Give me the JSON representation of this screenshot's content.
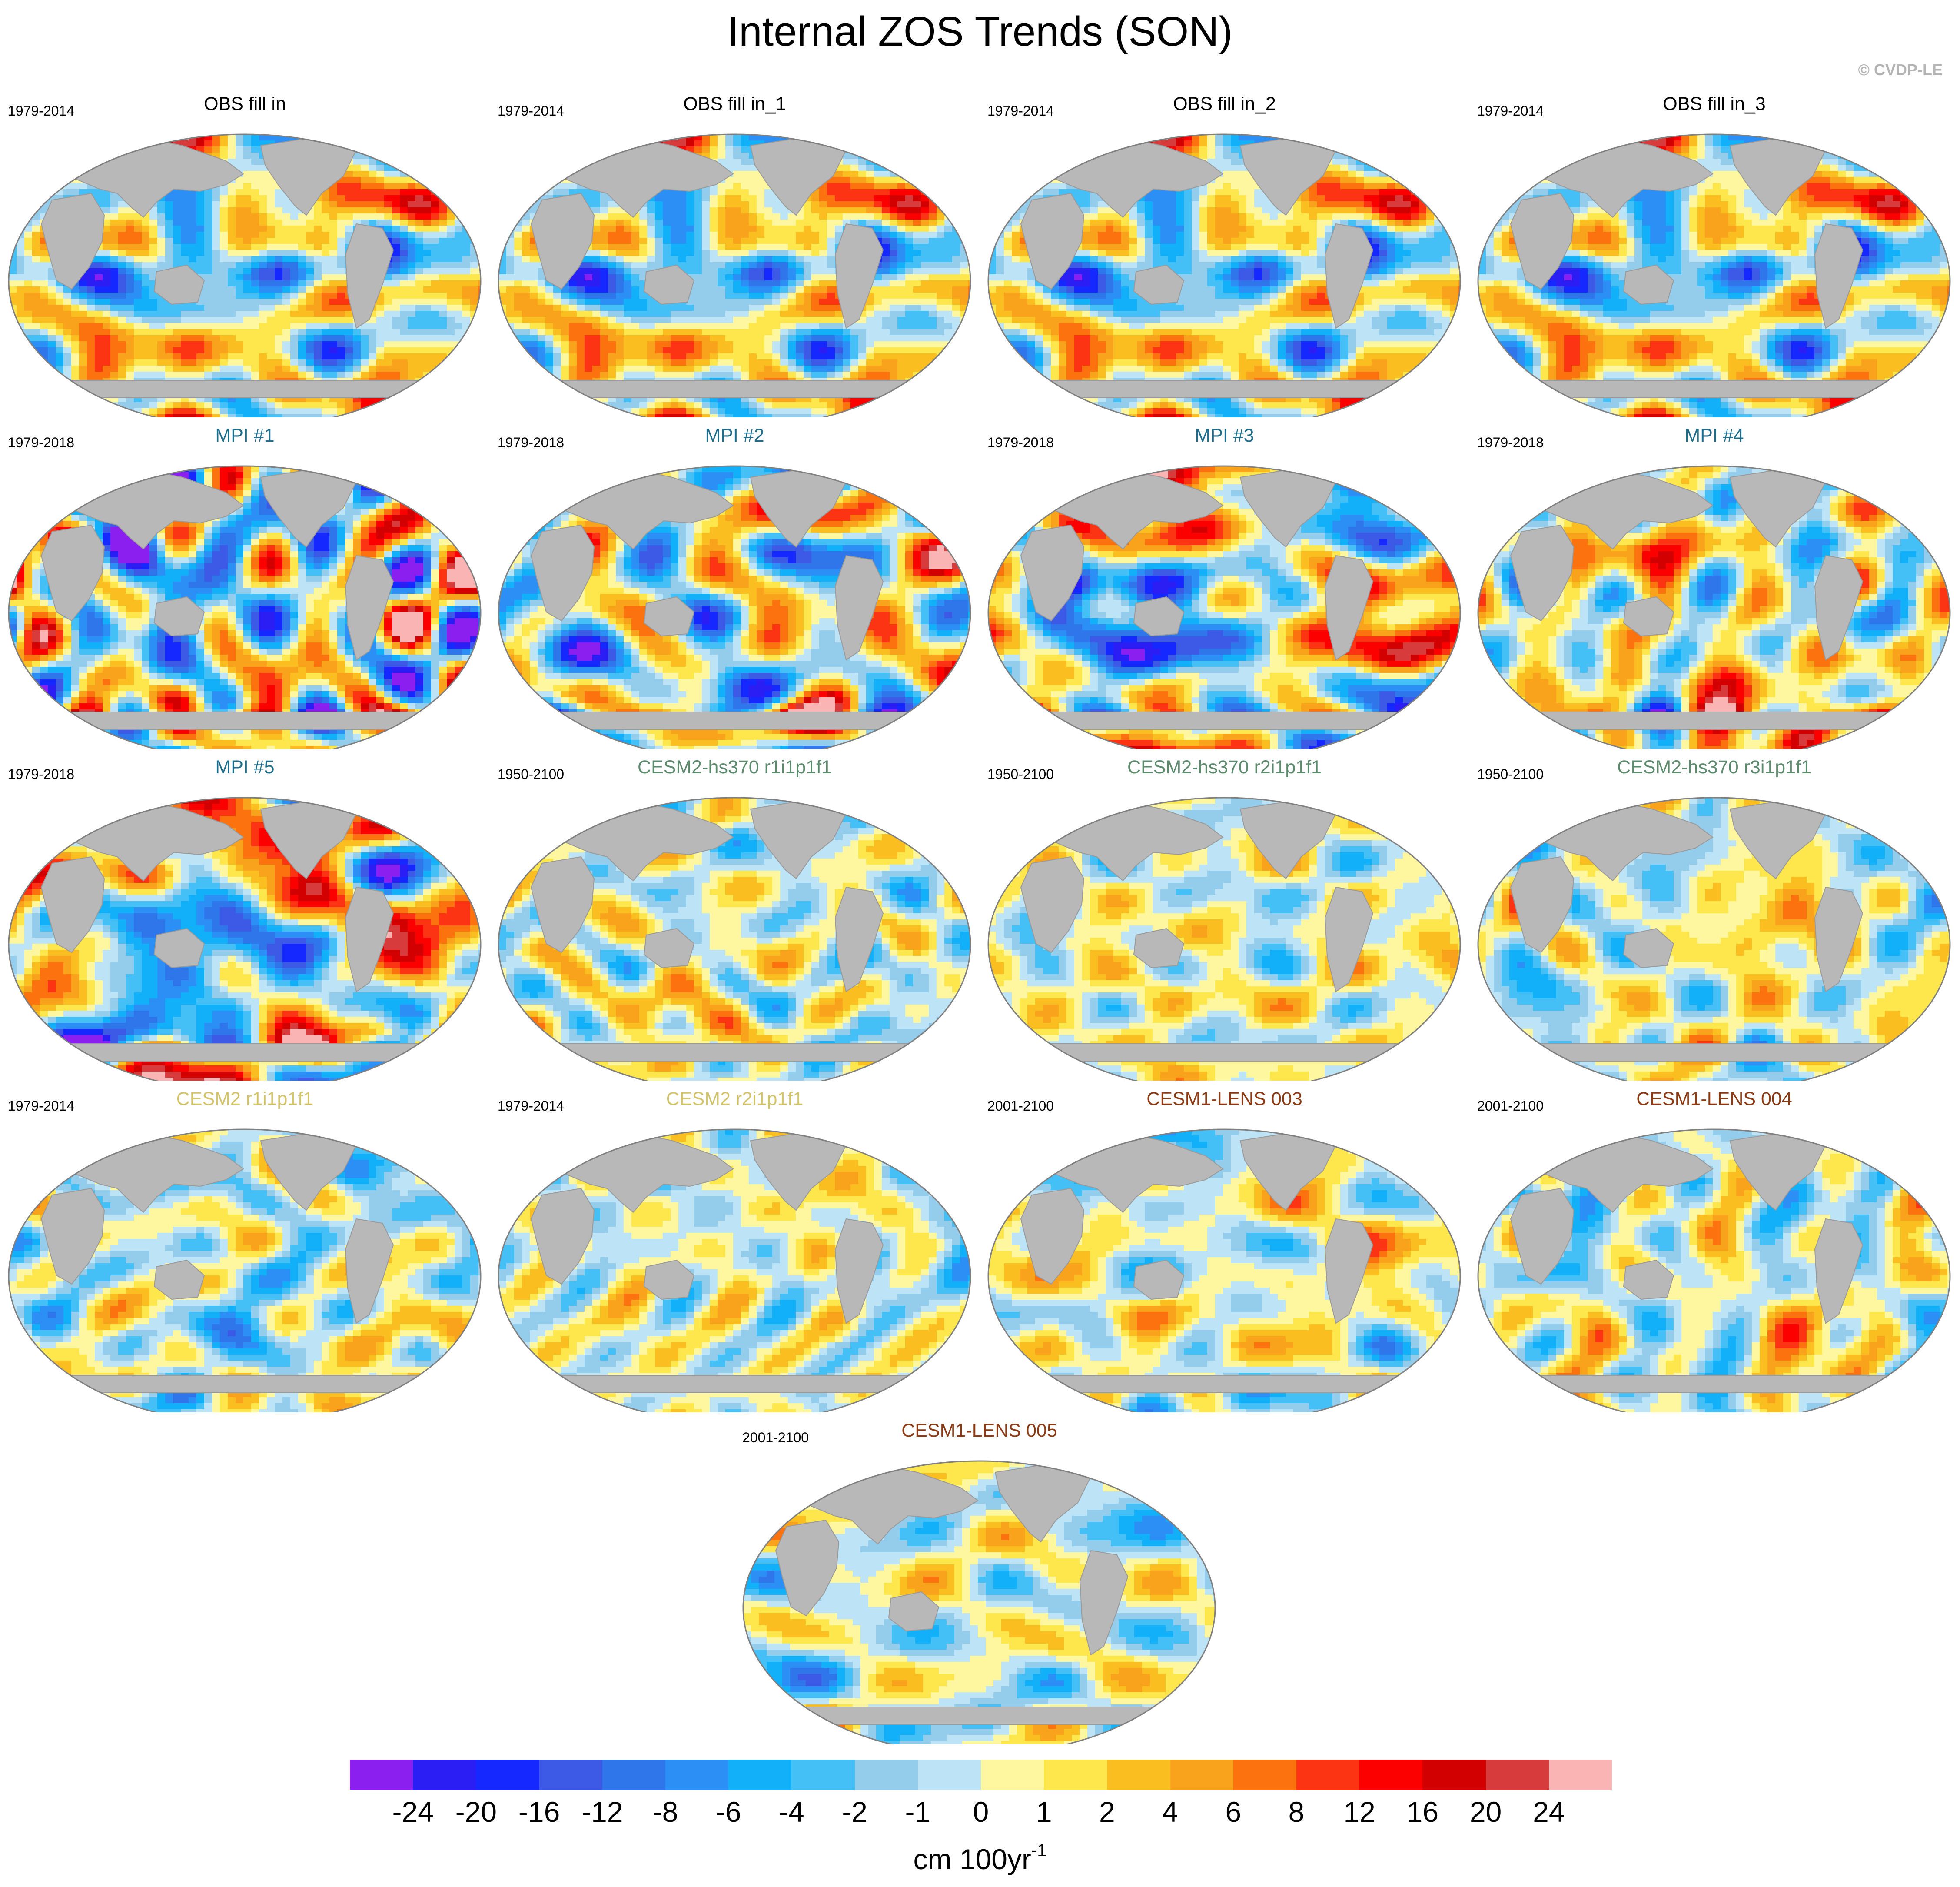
{
  "figure": {
    "title": "Internal ZOS Trends (SON)",
    "copyright": "© CVDP-LE"
  },
  "palette": {
    "land": "#b8b8b8",
    "ocean_outline": "#808080",
    "scale_colors": [
      "#8a1ff0",
      "#2a1ef5",
      "#1428ff",
      "#3c5ae6",
      "#2f76eb",
      "#2b8ff5",
      "#13b0fa",
      "#44c0f7",
      "#94cdec",
      "#bde3f6",
      "#fff7a0",
      "#fde74c",
      "#fbbe21",
      "#f9a31c",
      "#fb720f",
      "#fc3414",
      "#fc0000",
      "#d20000",
      "#d83b3b",
      "#fbb4b4"
    ]
  },
  "panels": [
    {
      "title": "OBS fill in",
      "period": "1979-2014",
      "title_color": "#000000",
      "pattern": 0
    },
    {
      "title": "OBS fill in_1",
      "period": "1979-2014",
      "title_color": "#000000",
      "pattern": 0
    },
    {
      "title": "OBS fill in_2",
      "period": "1979-2014",
      "title_color": "#000000",
      "pattern": 0
    },
    {
      "title": "OBS fill in_3",
      "period": "1979-2014",
      "title_color": "#000000",
      "pattern": 0
    },
    {
      "title": "MPI #1",
      "period": "1979-2018",
      "title_color": "#1f6d8c",
      "pattern": 1
    },
    {
      "title": "MPI #2",
      "period": "1979-2018",
      "title_color": "#1f6d8c",
      "pattern": 2
    },
    {
      "title": "MPI #3",
      "period": "1979-2018",
      "title_color": "#1f6d8c",
      "pattern": 3
    },
    {
      "title": "MPI #4",
      "period": "1979-2018",
      "title_color": "#1f6d8c",
      "pattern": 4
    },
    {
      "title": "MPI #5",
      "period": "1979-2018",
      "title_color": "#1f6d8c",
      "pattern": 5
    },
    {
      "title": "CESM2-hs370 r1i1p1f1",
      "period": "1950-2100",
      "title_color": "#5b8a6d",
      "pattern": 6
    },
    {
      "title": "CESM2-hs370 r2i1p1f1",
      "period": "1950-2100",
      "title_color": "#5b8a6d",
      "pattern": 7
    },
    {
      "title": "CESM2-hs370 r3i1p1f1",
      "period": "1950-2100",
      "title_color": "#5b8a6d",
      "pattern": 8
    },
    {
      "title": "CESM2 r1i1p1f1",
      "period": "1979-2014",
      "title_color": "#d2c36a",
      "pattern": 9
    },
    {
      "title": "CESM2 r2i1p1f1",
      "period": "1979-2014",
      "title_color": "#d2c36a",
      "pattern": 10
    },
    {
      "title": "CESM1-LENS 003",
      "period": "2001-2100",
      "title_color": "#8b3a13",
      "pattern": 11
    },
    {
      "title": "CESM1-LENS 004",
      "period": "2001-2100",
      "title_color": "#8b3a13",
      "pattern": 12
    },
    {
      "title": "CESM1-LENS 005",
      "period": "2001-2100",
      "title_color": "#8b3a13",
      "pattern": 13
    }
  ],
  "colorbar": {
    "labels": [
      "-24",
      "-20",
      "-16",
      "-12",
      "-8",
      "-6",
      "-4",
      "-2",
      "-1",
      "0",
      "1",
      "2",
      "4",
      "6",
      "8",
      "12",
      "16",
      "20",
      "24"
    ],
    "units_main": "cm 100yr",
    "units_sup": "-1"
  }
}
